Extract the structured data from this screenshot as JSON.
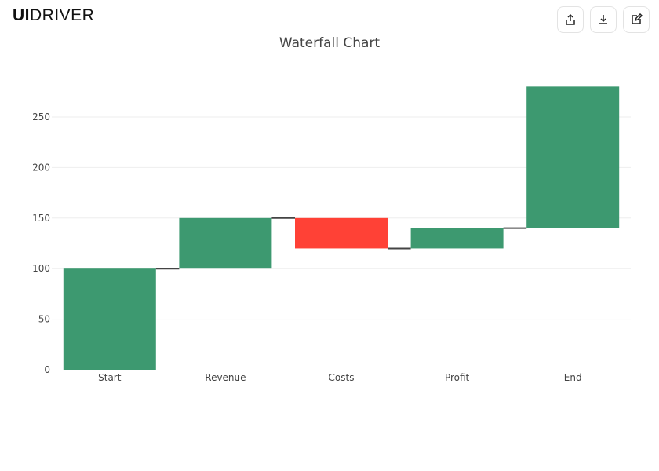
{
  "logo": {
    "bold": "UI",
    "rest": "DRIVER"
  },
  "toolbar": {
    "icons": [
      "share-icon",
      "download-icon",
      "edit-icon"
    ]
  },
  "chart_data": {
    "type": "waterfall",
    "title": "Waterfall Chart",
    "categories": [
      "Start",
      "Revenue",
      "Costs",
      "Profit",
      "End"
    ],
    "values": [
      100,
      50,
      -30,
      20,
      140
    ],
    "ylim": [
      0,
      290
    ],
    "yticks": [
      0,
      50,
      100,
      150,
      200,
      250
    ],
    "grid": true,
    "colors": {
      "increasing": "#3d9970",
      "decreasing": "#ff4136",
      "connector": "#444444",
      "grid": "#eeeeee"
    }
  }
}
